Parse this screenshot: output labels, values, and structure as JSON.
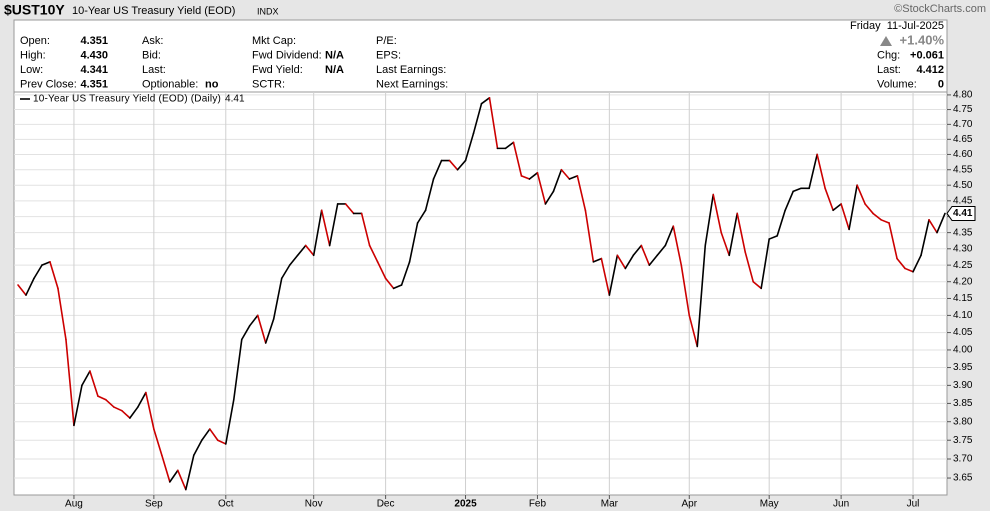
{
  "header": {
    "symbol": "$UST10Y",
    "name": "10-Year US Treasury Yield (EOD)",
    "exchange": "INDX",
    "watermark": "©StockCharts.com",
    "date": "Friday  11-Jul-2025",
    "change_pct": "+1.40%",
    "quote": [
      [
        {
          "label": "Open:",
          "value": "4.351"
        },
        {
          "label": "High:",
          "value": "4.430"
        },
        {
          "label": "Low:",
          "value": "4.341"
        },
        {
          "label": "Prev Close:",
          "value": "4.351"
        }
      ],
      [
        {
          "label": "Ask:"
        },
        {
          "label": "Bid:"
        },
        {
          "label": "Last:"
        },
        {
          "label": "Optionable:",
          "value": "no"
        }
      ],
      [
        {
          "label": "Mkt Cap:"
        },
        {
          "label": "Fwd Dividend:",
          "value": "N/A"
        },
        {
          "label": "Fwd Yield:",
          "value": "N/A"
        },
        {
          "label": "SCTR:"
        }
      ],
      [
        {
          "label": "P/E:"
        },
        {
          "label": "EPS:"
        },
        {
          "label": "Last Earnings:"
        },
        {
          "label": "Next Earnings:"
        }
      ],
      [
        {
          "label": "Chg:",
          "value": "+0.061"
        },
        {
          "label": "Last:",
          "value": "4.412"
        },
        {
          "label": "Volume:",
          "value": "0"
        }
      ]
    ]
  },
  "chart_data": {
    "type": "line",
    "log": true,
    "grid": true,
    "up_color": "#000000",
    "down_color": "#cc0000",
    "series": [
      {
        "name": "10-Year US Treasury Yield (EOD) (Daily)",
        "color": "#000000",
        "values": [
          4.19,
          4.16,
          4.21,
          4.25,
          4.26,
          4.18,
          4.03,
          3.79,
          3.9,
          3.94,
          3.87,
          3.86,
          3.84,
          3.83,
          3.81,
          3.84,
          3.88,
          3.78,
          3.71,
          3.64,
          3.67,
          3.62,
          3.71,
          3.75,
          3.78,
          3.75,
          3.74,
          3.86,
          4.03,
          4.07,
          4.1,
          4.02,
          4.09,
          4.21,
          4.25,
          4.28,
          4.31,
          4.28,
          4.42,
          4.31,
          4.44,
          4.44,
          4.41,
          4.41,
          4.31,
          4.26,
          4.21,
          4.18,
          4.19,
          4.26,
          4.38,
          4.42,
          4.52,
          4.58,
          4.58,
          4.55,
          4.58,
          4.67,
          4.77,
          4.79,
          4.62,
          4.62,
          4.64,
          4.53,
          4.52,
          4.54,
          4.44,
          4.48,
          4.55,
          4.52,
          4.53,
          4.42,
          4.26,
          4.27,
          4.16,
          4.28,
          4.24,
          4.28,
          4.31,
          4.25,
          4.28,
          4.31,
          4.37,
          4.25,
          4.1,
          4.01,
          4.31,
          4.47,
          4.35,
          4.28,
          4.41,
          4.29,
          4.2,
          4.18,
          4.33,
          4.34,
          4.42,
          4.48,
          4.49,
          4.49,
          4.6,
          4.49,
          4.42,
          4.44,
          4.36,
          4.5,
          4.44,
          4.41,
          4.39,
          4.38,
          4.27,
          4.24,
          4.23,
          4.28,
          4.39,
          4.35,
          4.41
        ]
      }
    ],
    "categories": [
      null,
      null,
      null,
      null,
      null,
      null,
      null,
      "Aug",
      null,
      null,
      null,
      null,
      null,
      null,
      null,
      null,
      null,
      "Sep",
      null,
      null,
      null,
      null,
      null,
      null,
      null,
      null,
      "Oct",
      null,
      null,
      null,
      null,
      null,
      null,
      null,
      null,
      null,
      null,
      "Nov",
      null,
      null,
      null,
      null,
      null,
      null,
      null,
      null,
      "Dec",
      null,
      null,
      null,
      null,
      null,
      null,
      null,
      null,
      null,
      "2025",
      null,
      null,
      null,
      null,
      null,
      null,
      null,
      null,
      "Feb",
      null,
      null,
      null,
      null,
      null,
      null,
      null,
      null,
      "Mar",
      null,
      null,
      null,
      null,
      null,
      null,
      null,
      null,
      null,
      "Apr",
      null,
      null,
      null,
      null,
      null,
      null,
      null,
      null,
      null,
      "May",
      null,
      null,
      null,
      null,
      null,
      null,
      null,
      null,
      "Jun",
      null,
      null,
      null,
      null,
      null,
      null,
      null,
      null,
      "Jul",
      null,
      null,
      null,
      null
    ],
    "ylim": [
      3.606,
      4.81
    ],
    "yticks": [
      3.65,
      {
        "value": 3.7,
        "label": "3.70"
      },
      3.75,
      {
        "value": 3.8,
        "label": "3.80"
      },
      3.85,
      {
        "value": 3.9,
        "label": "3.90"
      },
      3.95,
      {
        "value": 4,
        "label": "4.00"
      },
      4.05,
      {
        "value": 4.1,
        "label": "4.10"
      },
      4.15,
      {
        "value": 4.2,
        "label": "4.20"
      },
      4.25,
      {
        "value": 4.3,
        "label": "4.30"
      },
      4.35,
      {
        "value": 4.4,
        "label": "4.40"
      },
      4.45,
      {
        "value": 4.5,
        "label": "4.50"
      },
      4.55,
      {
        "value": 4.6,
        "label": "4.60"
      },
      4.65,
      {
        "value": 4.7,
        "label": "4.70"
      },
      4.75,
      {
        "value": 4.8,
        "label": "4.80"
      }
    ]
  }
}
